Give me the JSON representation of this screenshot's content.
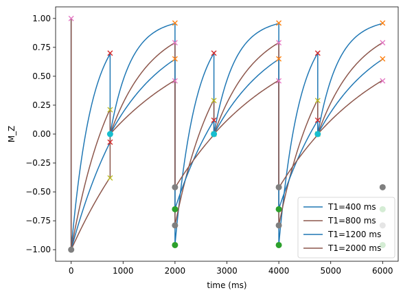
{
  "chart_data": {
    "type": "line",
    "xlabel": "time (ms)",
    "ylabel": "M_Z",
    "xlim": [
      -300,
      6300
    ],
    "ylim": [
      -1.1,
      1.1
    ],
    "xticks": [
      0,
      1000,
      2000,
      3000,
      4000,
      5000,
      6000
    ],
    "xtick_labels": [
      "0",
      "1000",
      "2000",
      "3000",
      "4000",
      "5000",
      "6000"
    ],
    "yticks": [
      -1.0,
      -0.75,
      -0.5,
      -0.25,
      0.0,
      0.25,
      0.5,
      0.75,
      1.0
    ],
    "ytick_labels": [
      "−1.00",
      "−0.75",
      "−0.50",
      "−0.25",
      "0.00",
      "0.25",
      "0.50",
      "0.75",
      "1.00"
    ],
    "grid": false,
    "legend_position": "lower-right",
    "pulses": {
      "inversion_times": [
        0,
        2000,
        4000
      ],
      "readout_times": [
        750,
        2750,
        4750
      ],
      "cycle_end": 6000
    },
    "series": [
      {
        "name": "T1=400 ms",
        "t1": 400,
        "color": "#1f77b4"
      },
      {
        "name": "T1=800 ms",
        "t1": 800,
        "color": "#8c564b"
      },
      {
        "name": "T1=1200 ms",
        "t1": 1200,
        "color": "#1f77b4"
      },
      {
        "name": "T1=2000 ms",
        "t1": 2000,
        "color": "#8c564b"
      }
    ],
    "markers": {
      "x_marks": [
        {
          "x": 0,
          "y": 1.0,
          "color": "#e377c2"
        },
        {
          "x": 750,
          "y": 0.7,
          "color": "#d62728"
        },
        {
          "x": 750,
          "y": 0.21,
          "color": "#bcbd22"
        },
        {
          "x": 750,
          "y": -0.07,
          "color": "#d62728"
        },
        {
          "x": 750,
          "y": -0.38,
          "color": "#bcbd22"
        },
        {
          "x": 2000,
          "y": 0.96,
          "color": "#ff7f0e"
        },
        {
          "x": 2000,
          "y": 0.79,
          "color": "#e377c2"
        },
        {
          "x": 2000,
          "y": 0.65,
          "color": "#ff7f0e"
        },
        {
          "x": 2000,
          "y": 0.46,
          "color": "#e377c2"
        },
        {
          "x": 2750,
          "y": 0.7,
          "color": "#d62728"
        },
        {
          "x": 2750,
          "y": 0.29,
          "color": "#bcbd22"
        },
        {
          "x": 2750,
          "y": 0.12,
          "color": "#d62728"
        },
        {
          "x": 2750,
          "y": 0.0,
          "color": "#bcbd22"
        },
        {
          "x": 4000,
          "y": 0.96,
          "color": "#ff7f0e"
        },
        {
          "x": 4000,
          "y": 0.79,
          "color": "#e377c2"
        },
        {
          "x": 4000,
          "y": 0.65,
          "color": "#ff7f0e"
        },
        {
          "x": 4000,
          "y": 0.46,
          "color": "#e377c2"
        },
        {
          "x": 4750,
          "y": 0.7,
          "color": "#d62728"
        },
        {
          "x": 4750,
          "y": 0.29,
          "color": "#bcbd22"
        },
        {
          "x": 4750,
          "y": 0.12,
          "color": "#d62728"
        },
        {
          "x": 4750,
          "y": 0.0,
          "color": "#bcbd22"
        },
        {
          "x": 6000,
          "y": 0.96,
          "color": "#ff7f0e"
        },
        {
          "x": 6000,
          "y": 0.79,
          "color": "#e377c2"
        },
        {
          "x": 6000,
          "y": 0.65,
          "color": "#ff7f0e"
        },
        {
          "x": 6000,
          "y": 0.46,
          "color": "#e377c2"
        }
      ],
      "dot_marks": [
        {
          "x": 0,
          "y": -1.0,
          "color": "#7f7f7f"
        },
        {
          "x": 750,
          "y": 0.0,
          "color": "#17becf"
        },
        {
          "x": 2000,
          "y": -0.46,
          "color": "#7f7f7f"
        },
        {
          "x": 2000,
          "y": -0.65,
          "color": "#2ca02c"
        },
        {
          "x": 2000,
          "y": -0.79,
          "color": "#7f7f7f"
        },
        {
          "x": 2000,
          "y": -0.96,
          "color": "#2ca02c"
        },
        {
          "x": 2750,
          "y": 0.0,
          "color": "#17becf"
        },
        {
          "x": 4000,
          "y": -0.46,
          "color": "#7f7f7f"
        },
        {
          "x": 4000,
          "y": -0.65,
          "color": "#2ca02c"
        },
        {
          "x": 4000,
          "y": -0.79,
          "color": "#7f7f7f"
        },
        {
          "x": 4000,
          "y": -0.96,
          "color": "#2ca02c"
        },
        {
          "x": 4750,
          "y": 0.0,
          "color": "#17becf"
        },
        {
          "x": 6000,
          "y": -0.46,
          "color": "#7f7f7f"
        },
        {
          "x": 6000,
          "y": -0.65,
          "color": "#2ca02c"
        },
        {
          "x": 6000,
          "y": -0.79,
          "color": "#7f7f7f"
        },
        {
          "x": 6000,
          "y": -0.96,
          "color": "#2ca02c"
        }
      ]
    }
  }
}
